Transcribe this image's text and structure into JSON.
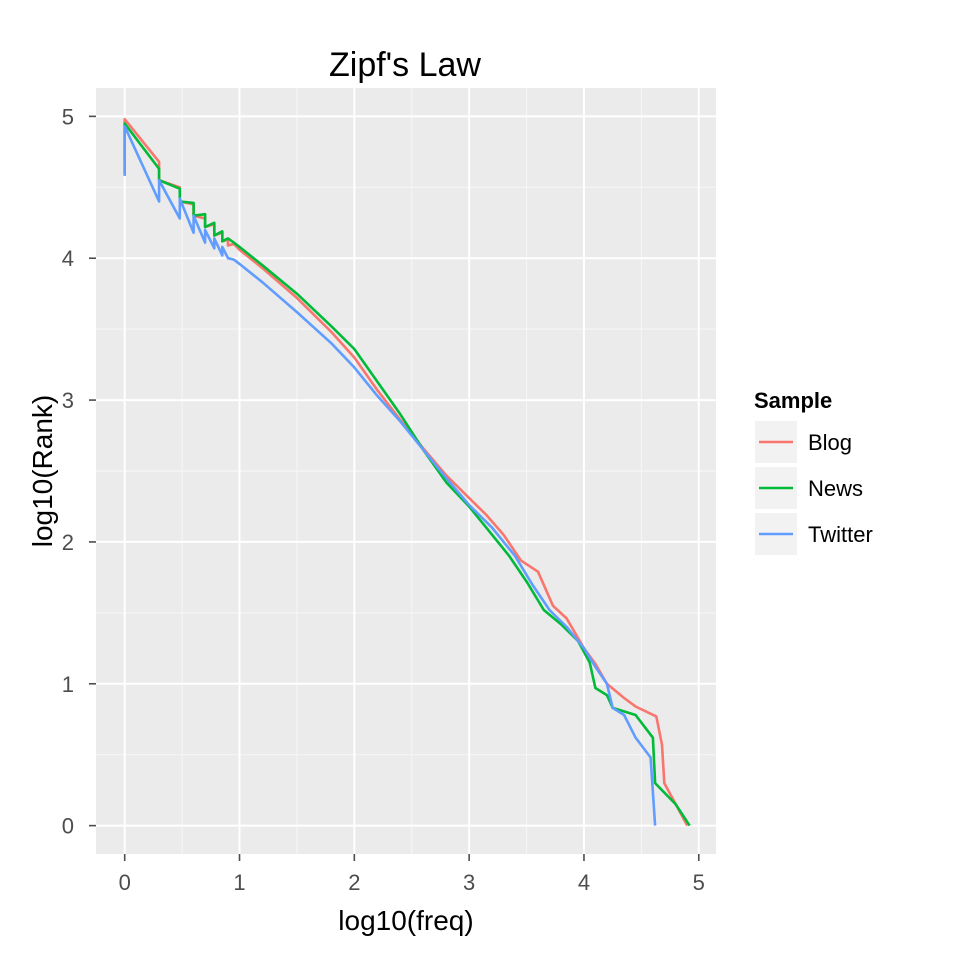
{
  "chart_data": {
    "type": "line",
    "title": "Zipf's Law",
    "xlabel": "log10(freq)",
    "ylabel": "log10(Rank)",
    "xlim": [
      -0.25,
      5.15
    ],
    "ylim": [
      -0.2,
      5.2
    ],
    "x_ticks": [
      0,
      1,
      2,
      3,
      4,
      5
    ],
    "x_tick_labels": [
      "0",
      "1",
      "2",
      "3",
      "4",
      "5"
    ],
    "y_ticks": [
      0,
      1,
      2,
      3,
      4,
      5
    ],
    "y_tick_labels": [
      "0",
      "1",
      "2",
      "3",
      "4",
      "5"
    ],
    "grid": true,
    "panel_background": "#ebebeb",
    "legend": {
      "title": "Sample",
      "position": "right"
    },
    "series": [
      {
        "name": "Blog",
        "color": "#F8766D",
        "points": [
          [
            0,
            4.7
          ],
          [
            0,
            4.98
          ],
          [
            0.3,
            4.68
          ],
          [
            0.3,
            4.55
          ],
          [
            0.48,
            4.5
          ],
          [
            0.48,
            4.4
          ],
          [
            0.6,
            4.38
          ],
          [
            0.6,
            4.3
          ],
          [
            0.7,
            4.28
          ],
          [
            0.7,
            4.22
          ],
          [
            0.78,
            4.24
          ],
          [
            0.78,
            4.16
          ],
          [
            0.85,
            4.18
          ],
          [
            0.85,
            4.12
          ],
          [
            0.9,
            4.13
          ],
          [
            0.9,
            4.09
          ],
          [
            0.95,
            4.1
          ],
          [
            1.0,
            4.06
          ],
          [
            1.2,
            3.93
          ],
          [
            1.5,
            3.72
          ],
          [
            1.8,
            3.48
          ],
          [
            2.0,
            3.3
          ],
          [
            2.2,
            3.07
          ],
          [
            2.4,
            2.86
          ],
          [
            2.6,
            2.66
          ],
          [
            2.8,
            2.47
          ],
          [
            3.0,
            2.31
          ],
          [
            3.15,
            2.19
          ],
          [
            3.3,
            2.05
          ],
          [
            3.45,
            1.87
          ],
          [
            3.6,
            1.79
          ],
          [
            3.73,
            1.55
          ],
          [
            3.85,
            1.46
          ],
          [
            4.0,
            1.25
          ],
          [
            4.1,
            1.14
          ],
          [
            4.2,
            1.0
          ],
          [
            4.35,
            0.9
          ],
          [
            4.45,
            0.84
          ],
          [
            4.63,
            0.77
          ],
          [
            4.68,
            0.57
          ],
          [
            4.7,
            0.3
          ],
          [
            4.9,
            0.0
          ]
        ]
      },
      {
        "name": "News",
        "color": "#00BA38",
        "points": [
          [
            0,
            4.6
          ],
          [
            0,
            4.95
          ],
          [
            0.3,
            4.63
          ],
          [
            0.3,
            4.55
          ],
          [
            0.48,
            4.49
          ],
          [
            0.48,
            4.4
          ],
          [
            0.6,
            4.39
          ],
          [
            0.6,
            4.3
          ],
          [
            0.7,
            4.31
          ],
          [
            0.7,
            4.22
          ],
          [
            0.78,
            4.25
          ],
          [
            0.78,
            4.16
          ],
          [
            0.85,
            4.19
          ],
          [
            0.85,
            4.12
          ],
          [
            0.9,
            4.14
          ],
          [
            0.95,
            4.11
          ],
          [
            1.0,
            4.08
          ],
          [
            1.2,
            3.95
          ],
          [
            1.5,
            3.75
          ],
          [
            1.8,
            3.52
          ],
          [
            2.0,
            3.36
          ],
          [
            2.2,
            3.13
          ],
          [
            2.4,
            2.9
          ],
          [
            2.6,
            2.65
          ],
          [
            2.8,
            2.42
          ],
          [
            3.0,
            2.25
          ],
          [
            3.2,
            2.05
          ],
          [
            3.35,
            1.9
          ],
          [
            3.5,
            1.72
          ],
          [
            3.65,
            1.52
          ],
          [
            3.8,
            1.42
          ],
          [
            3.95,
            1.3
          ],
          [
            4.05,
            1.15
          ],
          [
            4.1,
            0.97
          ],
          [
            4.2,
            0.92
          ],
          [
            4.25,
            0.83
          ],
          [
            4.45,
            0.78
          ],
          [
            4.6,
            0.62
          ],
          [
            4.62,
            0.3
          ],
          [
            4.8,
            0.15
          ],
          [
            4.92,
            0.0
          ]
        ]
      },
      {
        "name": "Twitter",
        "color": "#619CFF",
        "points": [
          [
            0,
            4.58
          ],
          [
            0,
            4.93
          ],
          [
            0.3,
            4.4
          ],
          [
            0.3,
            4.55
          ],
          [
            0.48,
            4.28
          ],
          [
            0.48,
            4.42
          ],
          [
            0.6,
            4.18
          ],
          [
            0.6,
            4.3
          ],
          [
            0.7,
            4.11
          ],
          [
            0.7,
            4.2
          ],
          [
            0.78,
            4.07
          ],
          [
            0.78,
            4.14
          ],
          [
            0.85,
            4.02
          ],
          [
            0.85,
            4.08
          ],
          [
            0.9,
            4.0
          ],
          [
            0.95,
            3.99
          ],
          [
            1.0,
            3.96
          ],
          [
            1.2,
            3.83
          ],
          [
            1.5,
            3.62
          ],
          [
            1.8,
            3.4
          ],
          [
            2.0,
            3.23
          ],
          [
            2.2,
            3.03
          ],
          [
            2.4,
            2.85
          ],
          [
            2.6,
            2.65
          ],
          [
            2.8,
            2.45
          ],
          [
            3.0,
            2.26
          ],
          [
            3.2,
            2.1
          ],
          [
            3.4,
            1.9
          ],
          [
            3.55,
            1.7
          ],
          [
            3.7,
            1.52
          ],
          [
            3.85,
            1.4
          ],
          [
            4.0,
            1.25
          ],
          [
            4.1,
            1.12
          ],
          [
            4.2,
            1.0
          ],
          [
            4.25,
            0.83
          ],
          [
            4.35,
            0.78
          ],
          [
            4.45,
            0.62
          ],
          [
            4.58,
            0.48
          ],
          [
            4.62,
            0.0
          ]
        ]
      }
    ]
  }
}
